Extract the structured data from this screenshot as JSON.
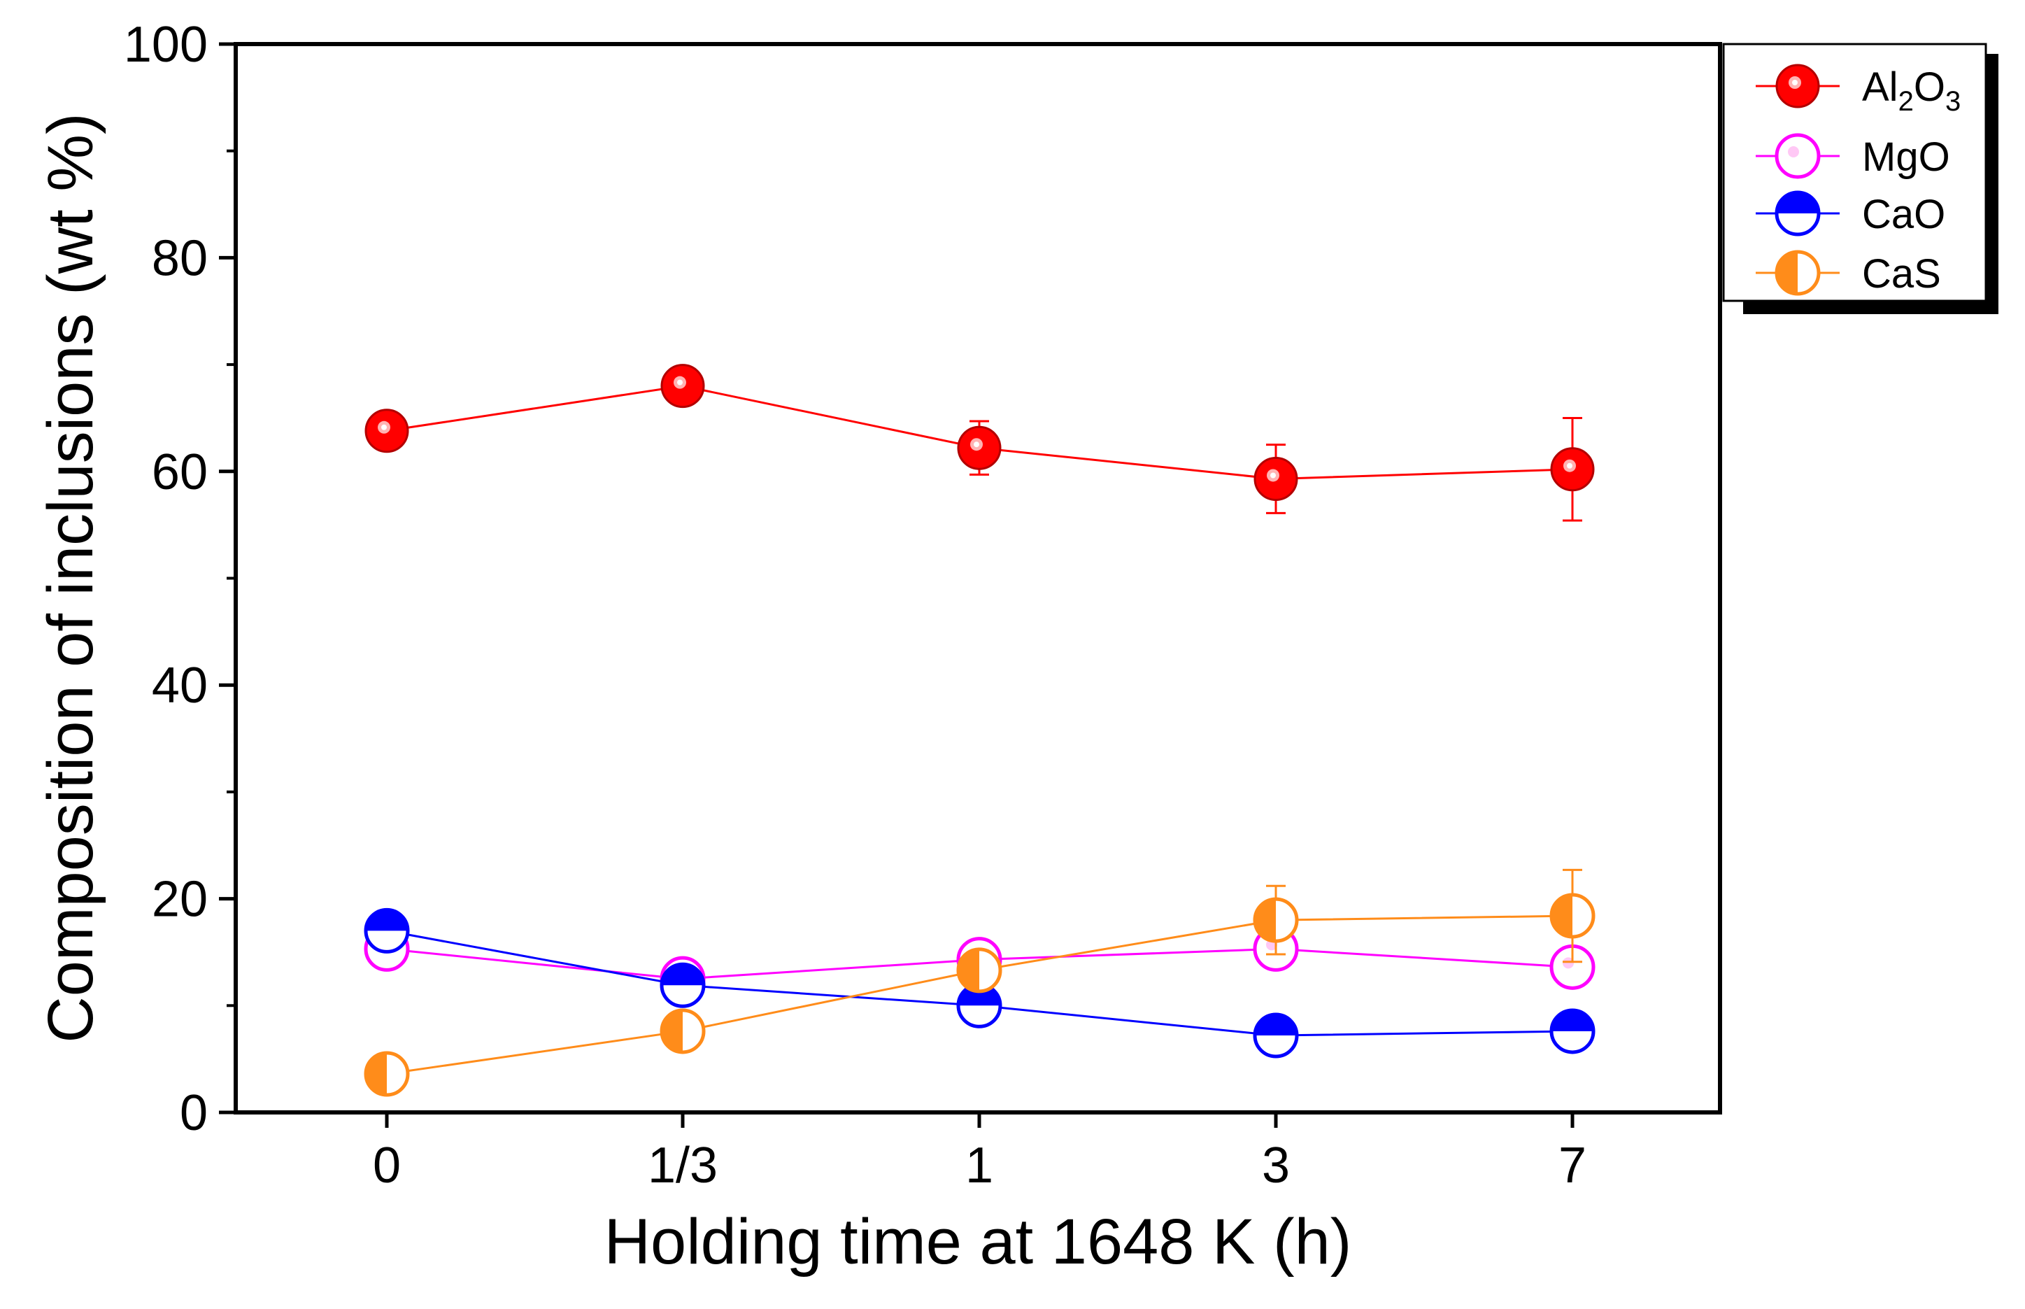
{
  "chart_data": {
    "type": "line",
    "xlabel": "Holding time at 1648 K (h)",
    "ylabel": "Composition of inclusions (wt %)",
    "categories": [
      "0",
      "1/3",
      "1",
      "3",
      "7"
    ],
    "ylim": [
      0,
      100
    ],
    "yticks": [
      "0",
      "20",
      "40",
      "60",
      "80",
      "100"
    ],
    "legend_position": "top-right",
    "series": [
      {
        "name": "Al2O3",
        "label_main": "Al",
        "label_sub1": "2",
        "label_mid": "O",
        "label_sub2": "3",
        "color": "#ff0000",
        "marker": "filled-circle",
        "values": [
          63.8,
          68.0,
          62.2,
          59.3,
          60.2
        ],
        "errors": [
          0.8,
          0.5,
          2.5,
          3.2,
          4.8
        ]
      },
      {
        "name": "MgO",
        "color": "#ff00ff",
        "marker": "open-circle",
        "values": [
          15.3,
          12.5,
          14.3,
          15.3,
          13.6
        ],
        "errors": [
          1.2,
          0.9,
          1.2,
          1.3,
          1.0
        ]
      },
      {
        "name": "CaO",
        "color": "#0000ff",
        "marker": "half-top-circle",
        "values": [
          17.0,
          11.9,
          10.0,
          7.2,
          7.6
        ],
        "errors": [
          1.0,
          1.0,
          1.5,
          0.5,
          0.4
        ]
      },
      {
        "name": "CaS",
        "color": "#ff8c1a",
        "marker": "half-left-circle",
        "values": [
          3.6,
          7.6,
          13.3,
          18.0,
          18.4
        ],
        "errors": [
          0.5,
          0.5,
          1.0,
          3.2,
          4.3
        ]
      }
    ]
  }
}
